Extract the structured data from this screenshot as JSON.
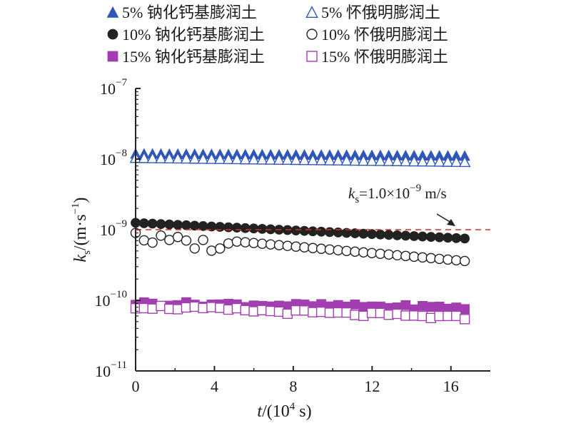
{
  "chart_data": {
    "type": "scatter",
    "xlabel": "t/(10^4 s)",
    "ylabel": "k_s/(m·s^-1)",
    "xlim": [
      0,
      18
    ],
    "ylim_log10": [
      -11,
      -7
    ],
    "x_ticks": [
      0,
      4,
      8,
      12,
      16
    ],
    "x_tick_labels": [
      "0",
      "4",
      "8",
      "12",
      "16"
    ],
    "y_ticks_log10": [
      -11,
      -10,
      -9,
      -8,
      -7
    ],
    "y_tick_labels": [
      {
        "base": "10",
        "exp": "−11"
      },
      {
        "base": "10",
        "exp": "−10"
      },
      {
        "base": "10",
        "exp": "−9"
      },
      {
        "base": "10",
        "exp": "−8"
      },
      {
        "base": "10",
        "exp": "−7"
      }
    ],
    "grid": false,
    "legend_position": "top",
    "x_title": {
      "var": "t",
      "rest": "/(10",
      "exp": "4",
      "end": " s)"
    },
    "y_title": {
      "var": "k",
      "sub": "s",
      "mid": "/(m·s",
      "exp": "−1",
      "end": ")"
    },
    "annotation": {
      "var": "k",
      "sub": "s",
      "mid": "=1.0×10",
      "exp": "−9",
      "end": " m/s"
    },
    "reference_line": {
      "y": 1e-09,
      "color": "#d32f2f",
      "style": "dashed"
    },
    "series": [
      {
        "name": "5% 钠化钙基膨润土",
        "marker": "triangle",
        "filled": true,
        "color": "#2f56b8",
        "x_start": 0,
        "x_end": 16.7,
        "y_start": 1.2e-08,
        "y_end": 1.12e-08
      },
      {
        "name": "5% 怀俄明膨润土",
        "marker": "triangle",
        "filled": false,
        "color": "#2f56b8",
        "x_start": 0,
        "x_end": 16.7,
        "y_start": 1.05e-08,
        "y_end": 9.2e-09
      },
      {
        "name": "10% 钠化钙基膨润土",
        "marker": "circle",
        "filled": true,
        "color": "#222222",
        "x_start": 0,
        "x_end": 16.7,
        "y_start": 1.25e-09,
        "y_end": 7.5e-10
      },
      {
        "name": "10% 怀俄明膨润土",
        "marker": "circle",
        "filled": false,
        "color": "#222222",
        "x_start": 0,
        "x_end": 16.7,
        "y_start": 9e-10,
        "y_end": 3.6e-10
      },
      {
        "name": "15% 钠化钙基膨润土",
        "marker": "square",
        "filled": true,
        "color": "#a23fb0",
        "x_start": 0,
        "x_end": 16.7,
        "y_start": 9e-11,
        "y_end": 7.8e-11
      },
      {
        "name": "15% 怀俄明膨润土",
        "marker": "square",
        "filled": false,
        "color": "#a23fb0",
        "x_start": 0,
        "x_end": 16.7,
        "y_start": 8.2e-11,
        "y_end": 5.6e-11
      }
    ]
  }
}
